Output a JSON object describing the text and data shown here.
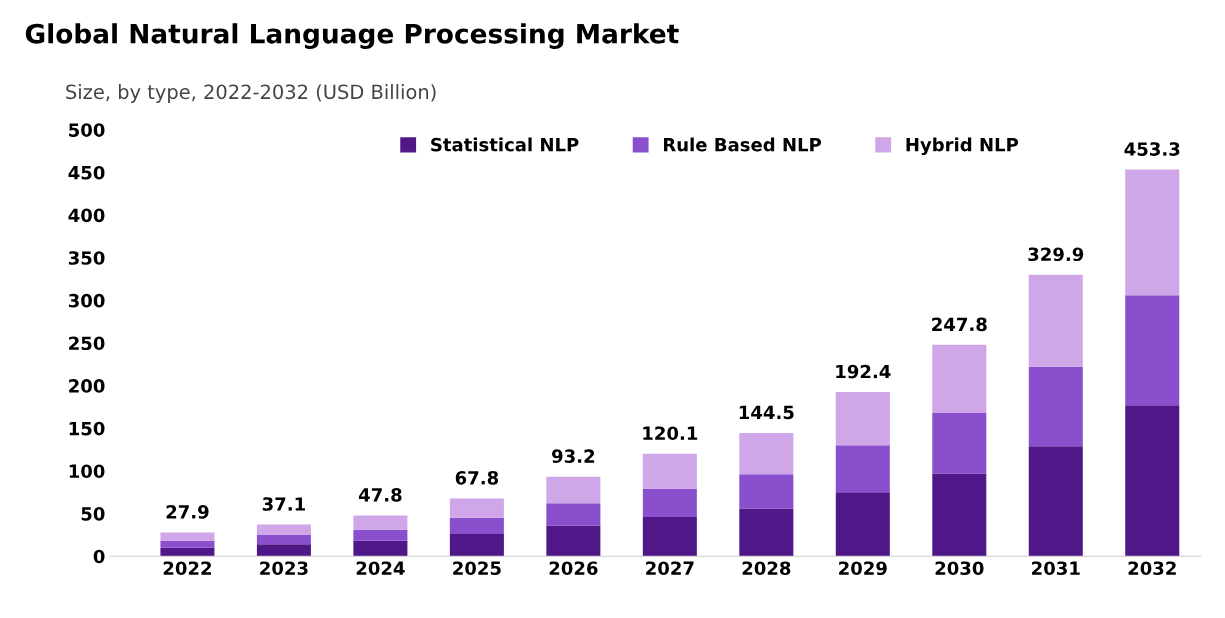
{
  "chart_data": {
    "type": "bar",
    "title": "Global Natural Language Processing Market",
    "subtitle": "Size, by type, 2022-2032 (USD Billion)",
    "categories": [
      "2022",
      "2023",
      "2024",
      "2025",
      "2026",
      "2027",
      "2028",
      "2029",
      "2030",
      "2031",
      "2032"
    ],
    "stacked": true,
    "series": [
      {
        "name": "Statistical NLP",
        "color": "#4f1787",
        "values": [
          10,
          14,
          18,
          26,
          36,
          46,
          56,
          75,
          97,
          129,
          177
        ]
      },
      {
        "name": "Rule Based NLP",
        "color": "#8a4fcc",
        "values": [
          8,
          11,
          13,
          19,
          26,
          33,
          40,
          55,
          71,
          93,
          129
        ]
      },
      {
        "name": "Hybrid NLP",
        "color": "#cfa6e8",
        "values": [
          9.9,
          12.1,
          16.8,
          22.8,
          31.2,
          41.1,
          48.5,
          62.4,
          79.8,
          107.9,
          147.3
        ]
      }
    ],
    "totals": [
      "27.9",
      "37.1",
      "47.8",
      "67.8",
      "93.2",
      "120.1",
      "144.5",
      "192.4",
      "247.8",
      "329.9",
      "453.3"
    ],
    "ylim": [
      0,
      500
    ],
    "yticks": [
      0,
      50,
      100,
      150,
      200,
      250,
      300,
      350,
      400,
      450,
      500
    ],
    "grid": false,
    "legend": "top"
  }
}
